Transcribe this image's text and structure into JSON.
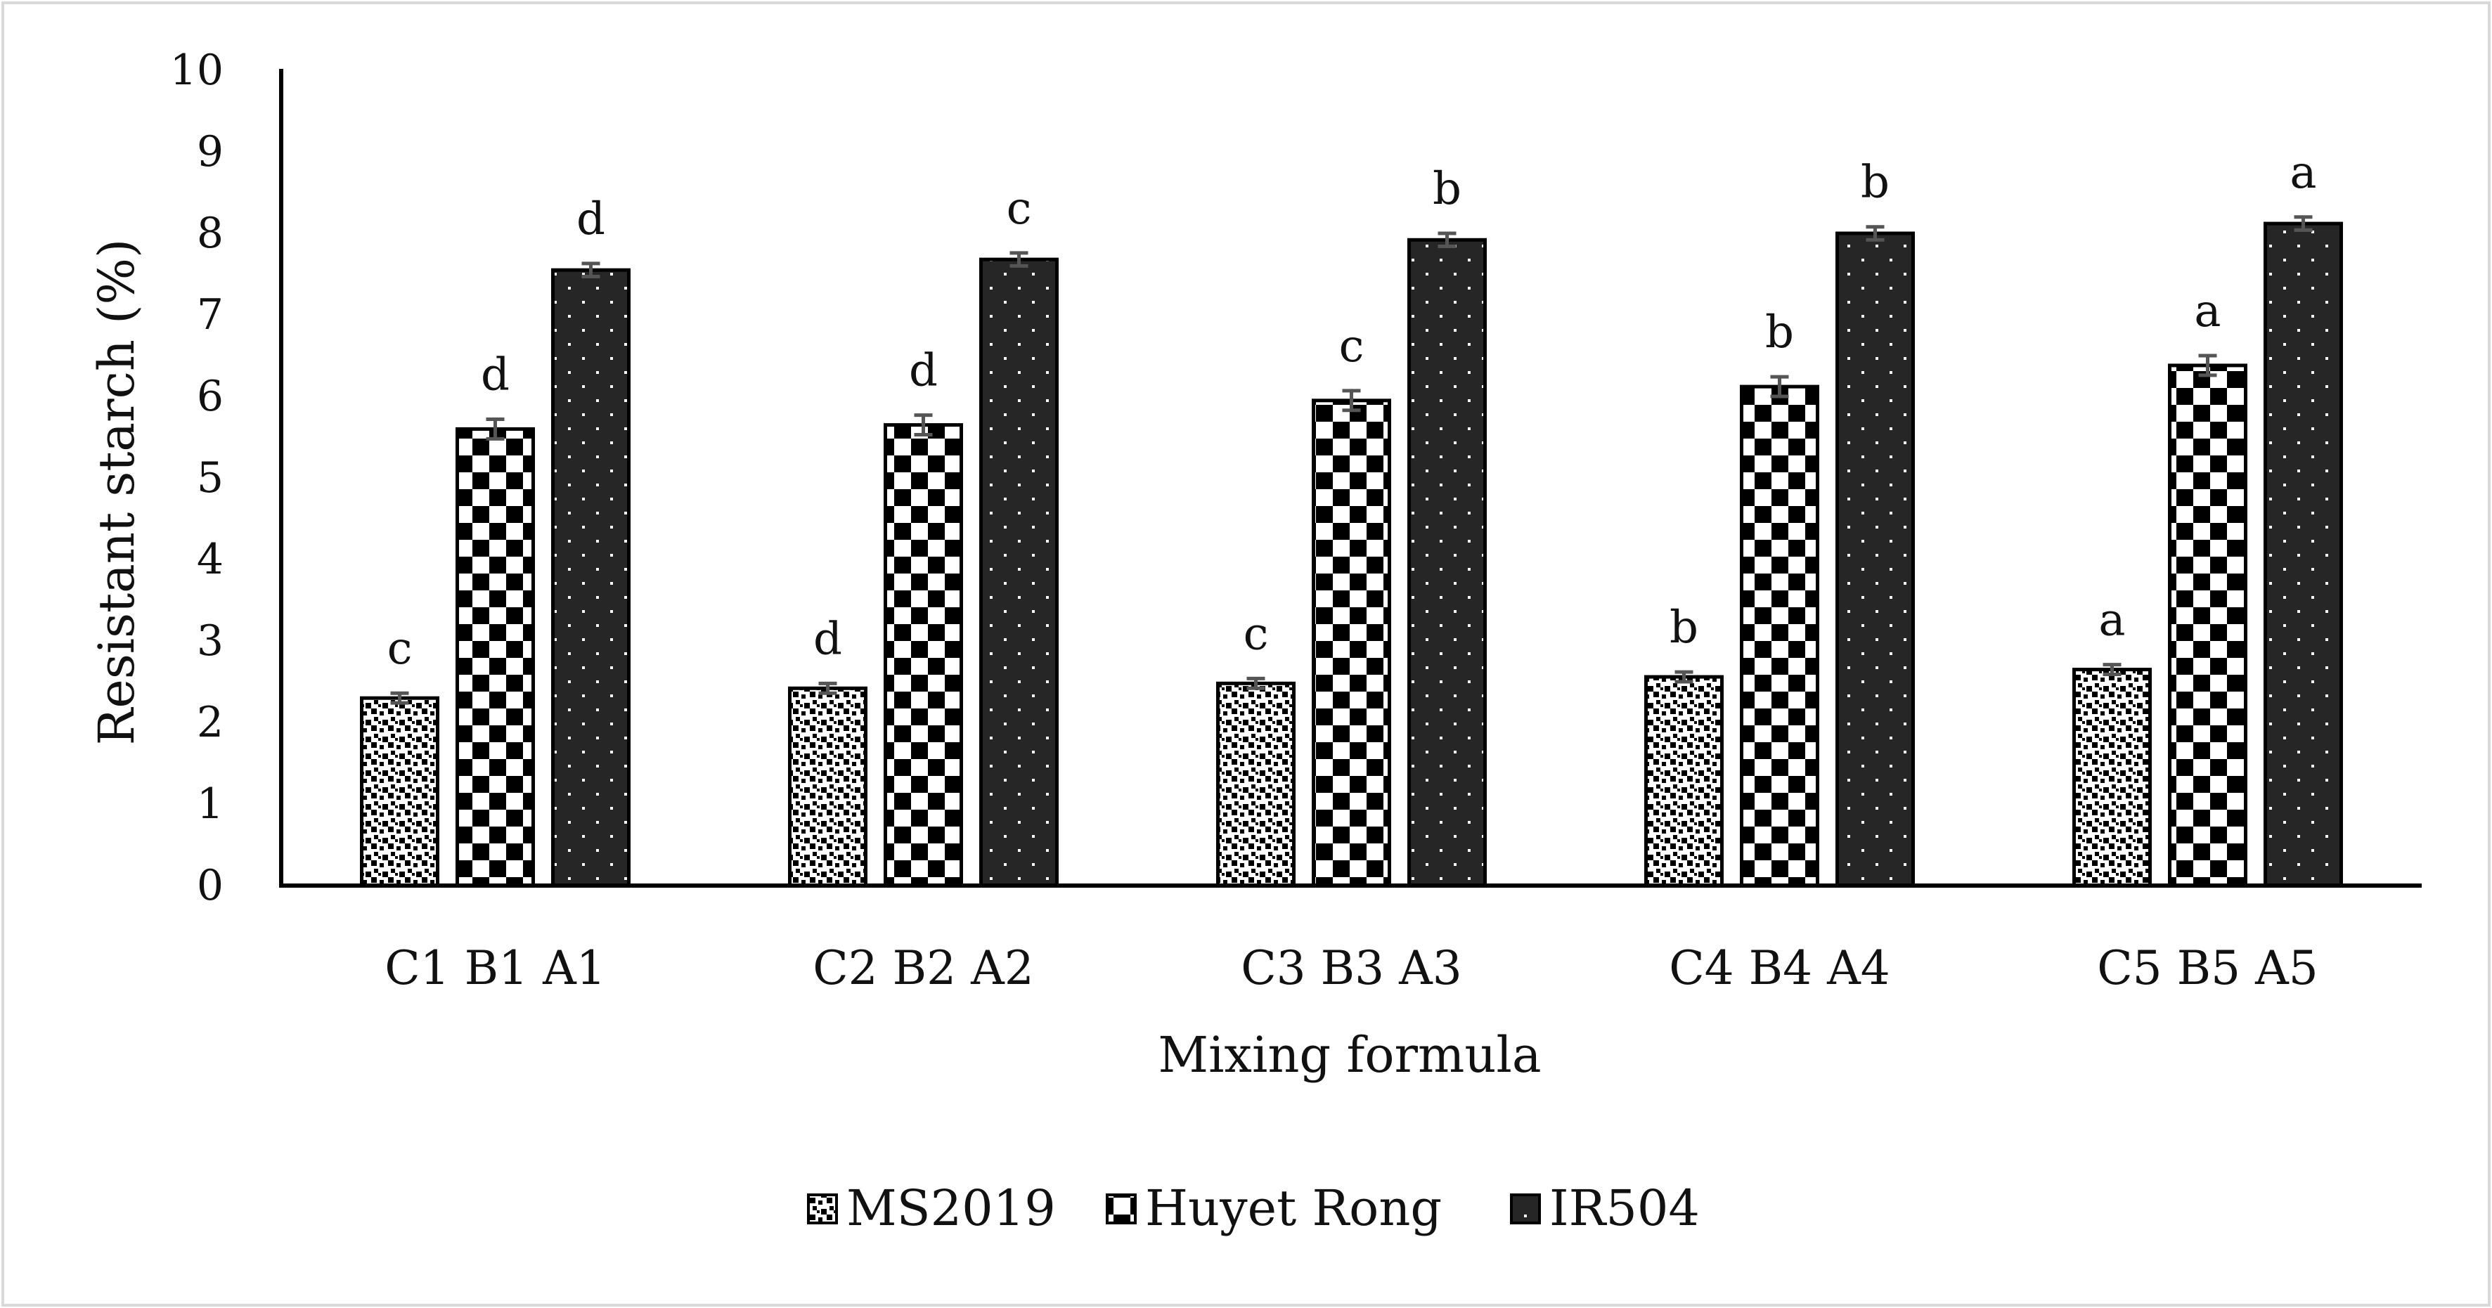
{
  "chart_data": {
    "type": "bar",
    "title": "",
    "xlabel": "Mixing formula",
    "ylabel": "Resistant starch (%)",
    "ylim": [
      0,
      10
    ],
    "yticks": [
      0,
      1,
      2,
      3,
      4,
      5,
      6,
      7,
      8,
      9,
      10
    ],
    "grid": false,
    "legend_position": "bottom",
    "categories": [
      "C1 B1 A1",
      "C2 B2 A2",
      "C3 B3 A3",
      "C4 B4 A4",
      "C5 B5 A5"
    ],
    "series": [
      {
        "name": "MS2019",
        "pattern": "dots",
        "values": [
          2.3,
          2.42,
          2.48,
          2.56,
          2.65
        ],
        "errors": [
          0.06,
          0.06,
          0.06,
          0.06,
          0.06
        ],
        "letters": [
          "c",
          "d",
          "c",
          "b",
          "a"
        ]
      },
      {
        "name": "Huyet Rong",
        "pattern": "checker",
        "values": [
          5.6,
          5.65,
          5.95,
          6.12,
          6.38
        ],
        "errors": [
          0.12,
          0.12,
          0.12,
          0.12,
          0.12
        ],
        "letters": [
          "d",
          "d",
          "c",
          "b",
          "a"
        ]
      },
      {
        "name": "IR504",
        "pattern": "dark-dots",
        "values": [
          7.55,
          7.68,
          7.92,
          8.0,
          8.12
        ],
        "errors": [
          0.08,
          0.08,
          0.08,
          0.08,
          0.08
        ],
        "letters": [
          "d",
          "c",
          "b",
          "b",
          "a"
        ]
      }
    ]
  },
  "colors": {
    "axis": "#000000",
    "bar_outline": "#000000",
    "error_bar": "#555555",
    "frame": "#d9d9d9",
    "dark_fill": "#262626"
  }
}
